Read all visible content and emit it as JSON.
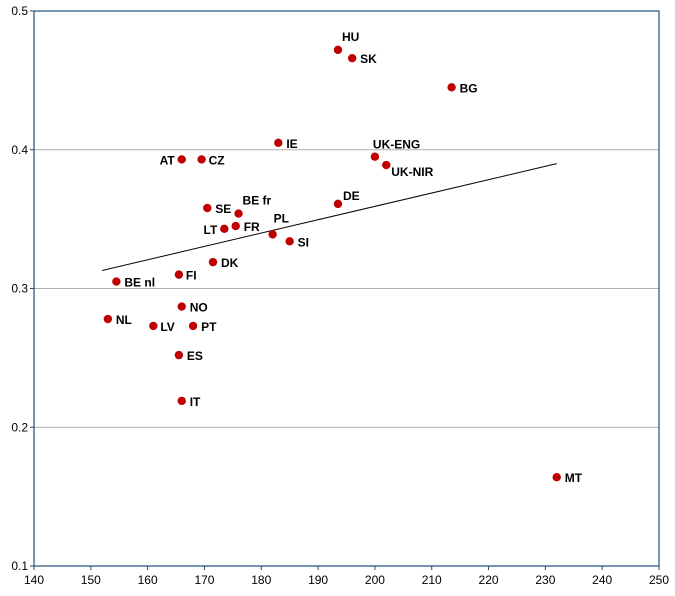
{
  "chart_data": {
    "type": "scatter",
    "title": "",
    "xlabel": "",
    "ylabel": "",
    "xlim": [
      140,
      250
    ],
    "ylim": [
      0.1,
      0.5
    ],
    "x_ticks": [
      "140",
      "150",
      "160",
      "170",
      "180",
      "190",
      "200",
      "210",
      "220",
      "230",
      "240",
      "250"
    ],
    "y_ticks": [
      "0.1",
      "0.2",
      "0.3",
      "0.4",
      "0.5"
    ],
    "grid": "horizontal",
    "colors": {
      "point": "#c00000",
      "trend": "#000000",
      "grid": "#b0b0b0",
      "axis": "#1f4e79"
    },
    "points": [
      {
        "label": "HU",
        "x": 193.5,
        "y": 0.472
      },
      {
        "label": "SK",
        "x": 196,
        "y": 0.466
      },
      {
        "label": "BG",
        "x": 213.5,
        "y": 0.445
      },
      {
        "label": "IE",
        "x": 183,
        "y": 0.405
      },
      {
        "label": "UK-ENG",
        "x": 200,
        "y": 0.395
      },
      {
        "label": "AT",
        "x": 166,
        "y": 0.393
      },
      {
        "label": "CZ",
        "x": 169.5,
        "y": 0.393
      },
      {
        "label": "UK-NIR",
        "x": 202,
        "y": 0.389
      },
      {
        "label": "DE",
        "x": 193.5,
        "y": 0.361
      },
      {
        "label": "SE",
        "x": 170.5,
        "y": 0.358
      },
      {
        "label": "BE fr",
        "x": 176,
        "y": 0.354
      },
      {
        "label": "FR",
        "x": 175.5,
        "y": 0.345
      },
      {
        "label": "LT",
        "x": 173.5,
        "y": 0.343
      },
      {
        "label": "PL",
        "x": 182,
        "y": 0.339
      },
      {
        "label": "SI",
        "x": 185,
        "y": 0.334
      },
      {
        "label": "DK",
        "x": 171.5,
        "y": 0.319
      },
      {
        "label": "FI",
        "x": 165.5,
        "y": 0.31
      },
      {
        "label": "BE nl",
        "x": 154.5,
        "y": 0.305
      },
      {
        "label": "NO",
        "x": 166,
        "y": 0.287
      },
      {
        "label": "NL",
        "x": 153,
        "y": 0.278
      },
      {
        "label": "LV",
        "x": 161,
        "y": 0.273
      },
      {
        "label": "PT",
        "x": 168,
        "y": 0.273
      },
      {
        "label": "ES",
        "x": 165.5,
        "y": 0.252
      },
      {
        "label": "IT",
        "x": 166,
        "y": 0.219
      },
      {
        "label": "MT",
        "x": 232,
        "y": 0.164
      }
    ],
    "trendline": {
      "x": [
        152,
        232
      ],
      "y": [
        0.313,
        0.39
      ]
    }
  }
}
